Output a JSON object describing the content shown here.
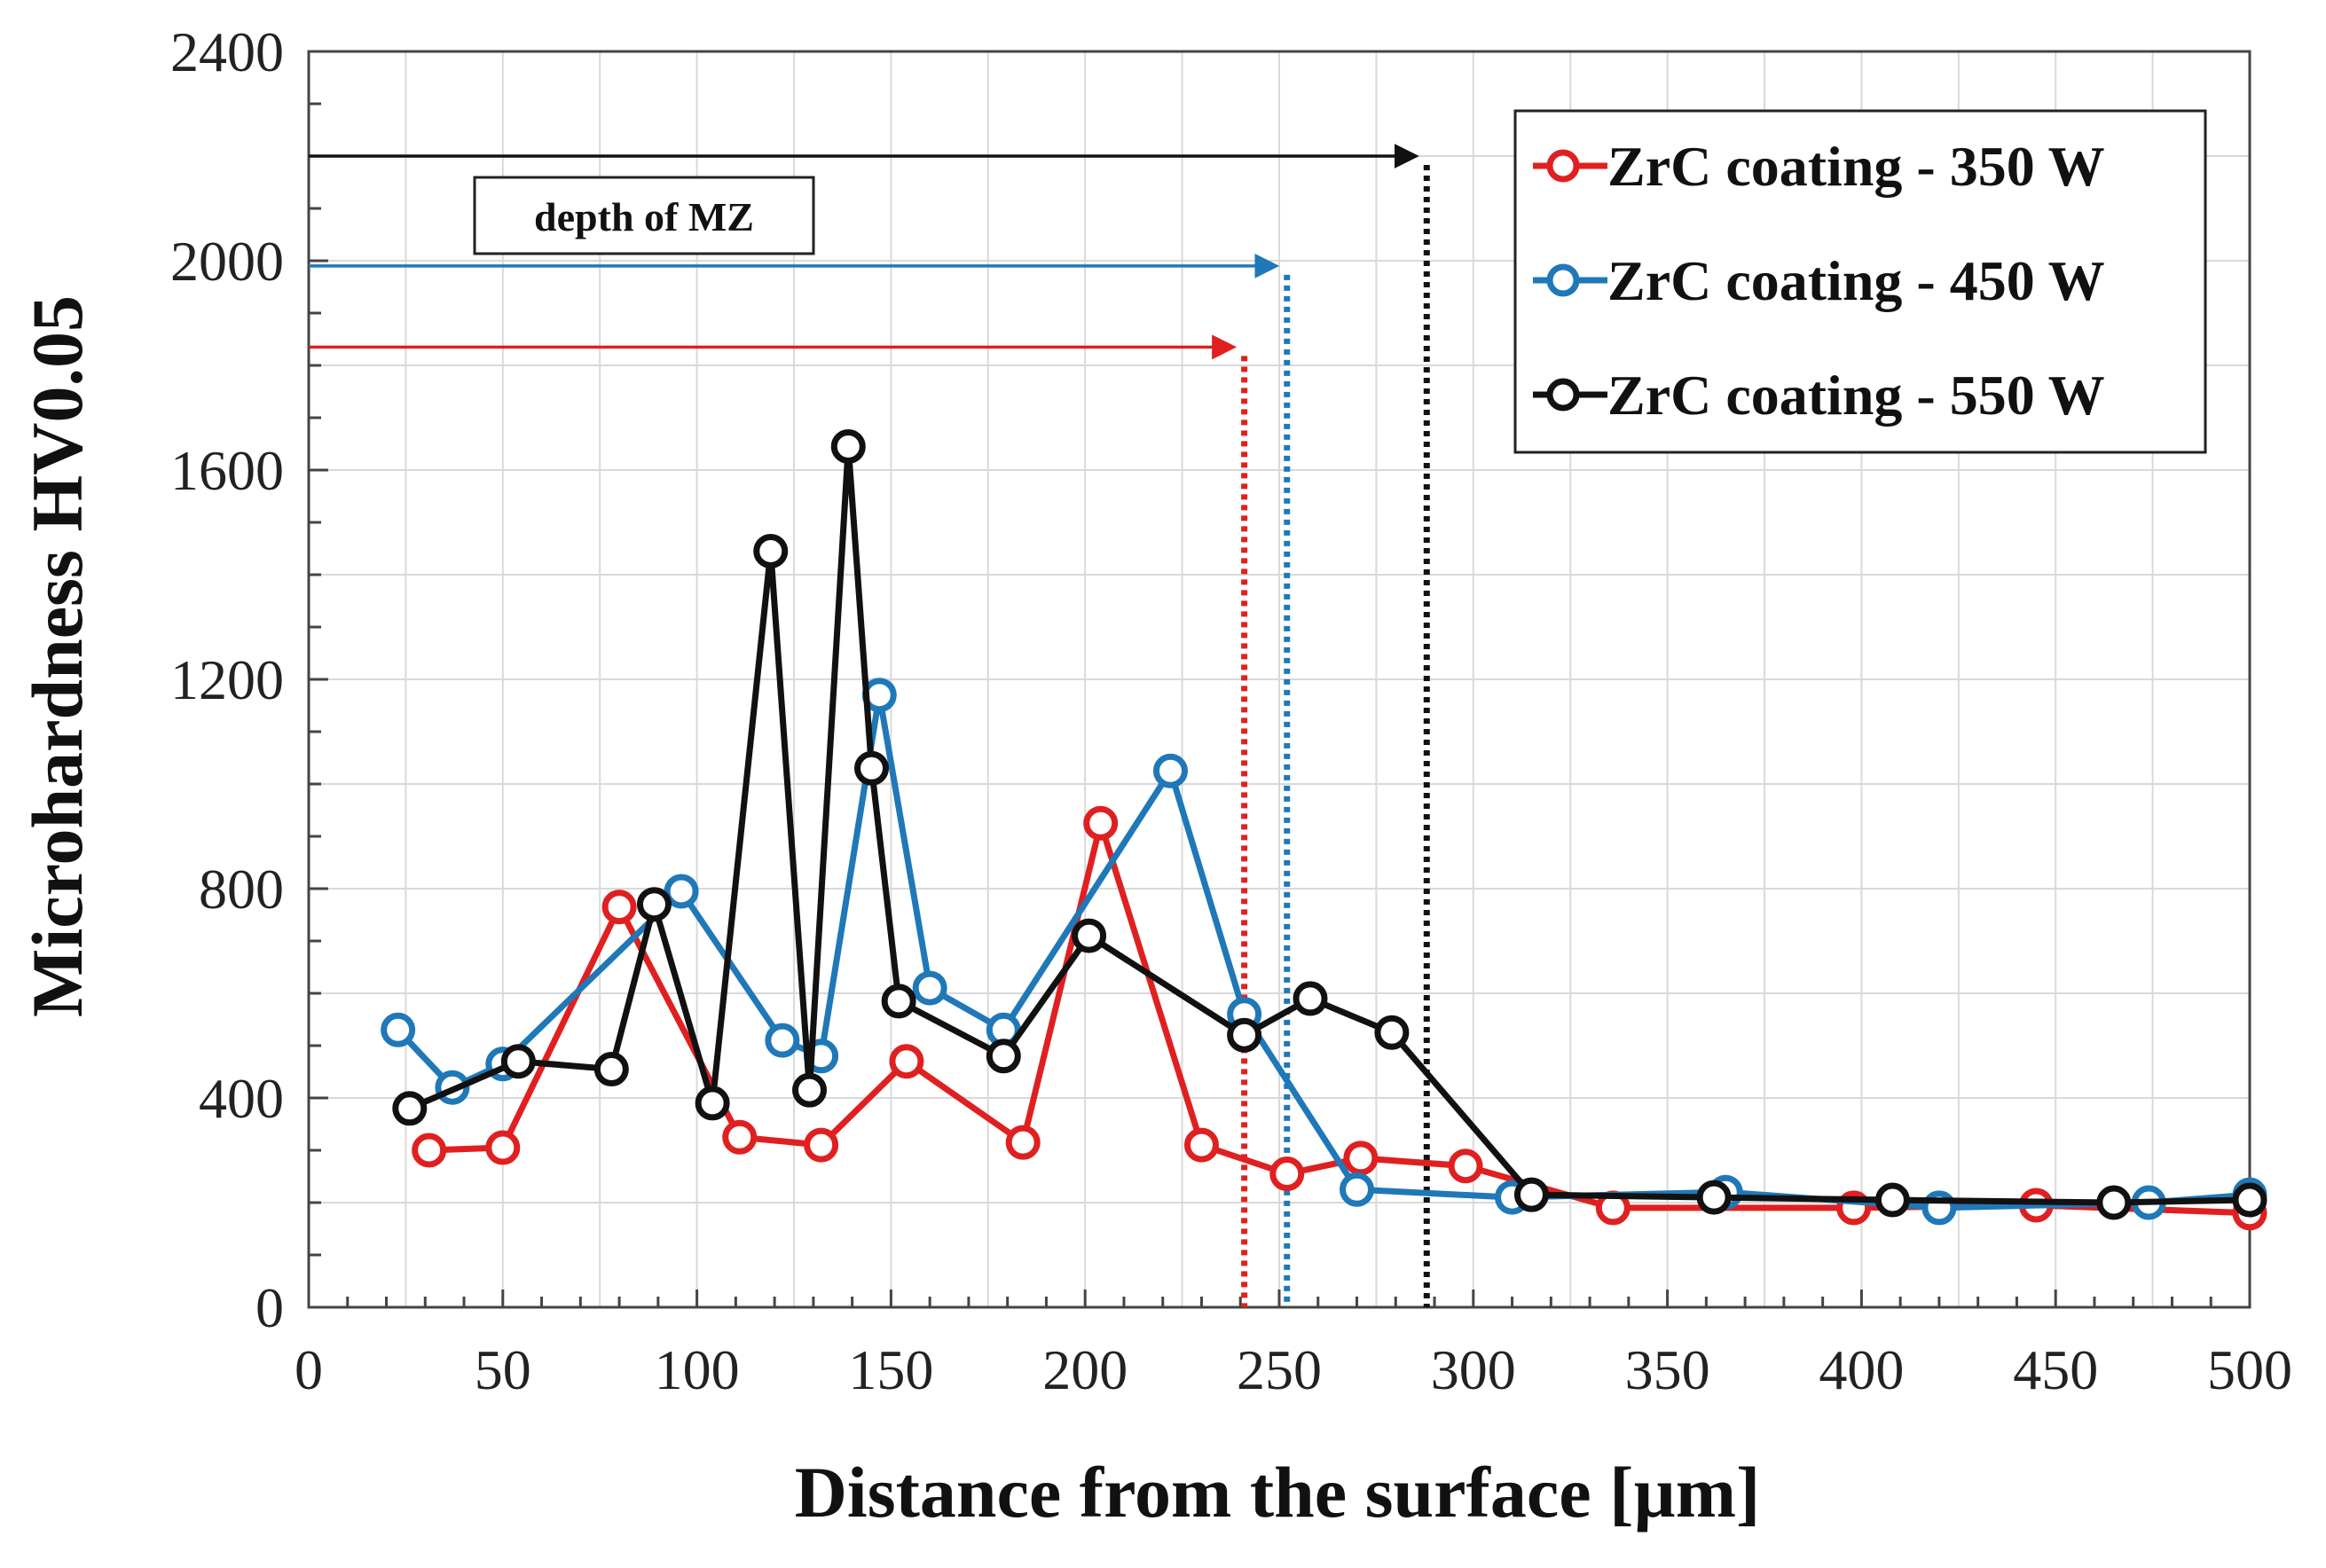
{
  "chart_data": {
    "type": "line",
    "title": "",
    "xlabel": "Distance from the surface [µm]",
    "ylabel": "Microhardness HV0.05",
    "xlim": [
      0,
      500
    ],
    "ylim": [
      0,
      2400
    ],
    "x_ticks": [
      0,
      50,
      100,
      150,
      200,
      250,
      300,
      350,
      400,
      450,
      500
    ],
    "y_ticks": [
      0,
      400,
      800,
      1200,
      1600,
      2000,
      2400
    ],
    "x_tick_labels": [
      "0",
      "50",
      "100",
      "150",
      "200",
      "250",
      "300",
      "350",
      "400",
      "450",
      "500"
    ],
    "y_tick_labels": [
      "0",
      "400",
      "800",
      "1200",
      "1600",
      "2000",
      "2400"
    ],
    "grid": true,
    "legend_position": "top-right",
    "series": [
      {
        "name": "ZrC coating - 350 W",
        "color": "#e02020",
        "x": [
          31,
          50,
          80,
          111,
          132,
          154,
          184,
          204,
          230,
          252,
          271,
          298,
          336,
          398,
          445,
          500
        ],
        "y": [
          300,
          305,
          765,
          325,
          310,
          470,
          315,
          925,
          310,
          255,
          285,
          270,
          190,
          190,
          195,
          180
        ]
      },
      {
        "name": "ZrC coating - 450 W",
        "color": "#1f78b8",
        "x": [
          23,
          37,
          50,
          96,
          122,
          132,
          147,
          160,
          179,
          222,
          241,
          270,
          310,
          365,
          420,
          474,
          500
        ],
        "y": [
          530,
          420,
          465,
          795,
          510,
          480,
          1170,
          610,
          530,
          1025,
          560,
          225,
          210,
          220,
          190,
          200,
          215
        ]
      },
      {
        "name": "ZrC coating - 550 W",
        "color": "#111111",
        "x": [
          26,
          54,
          78,
          89,
          104,
          119,
          129,
          139,
          145,
          152,
          179,
          201,
          241,
          258,
          279,
          315,
          362,
          408,
          465,
          500
        ],
        "y": [
          380,
          470,
          455,
          770,
          390,
          1445,
          415,
          1645,
          1030,
          585,
          480,
          710,
          520,
          590,
          525,
          215,
          210,
          205,
          200,
          205
        ]
      }
    ],
    "annotations": [
      {
        "text": "depth of MZ",
        "color": "#111111",
        "arrow_y": 2200,
        "depth_x": 288
      },
      {
        "text": "",
        "color": "#1f78b8",
        "arrow_y": 1990,
        "depth_x": 252
      },
      {
        "text": "",
        "color": "#e02020",
        "arrow_y": 1835,
        "depth_x": 241
      }
    ]
  }
}
